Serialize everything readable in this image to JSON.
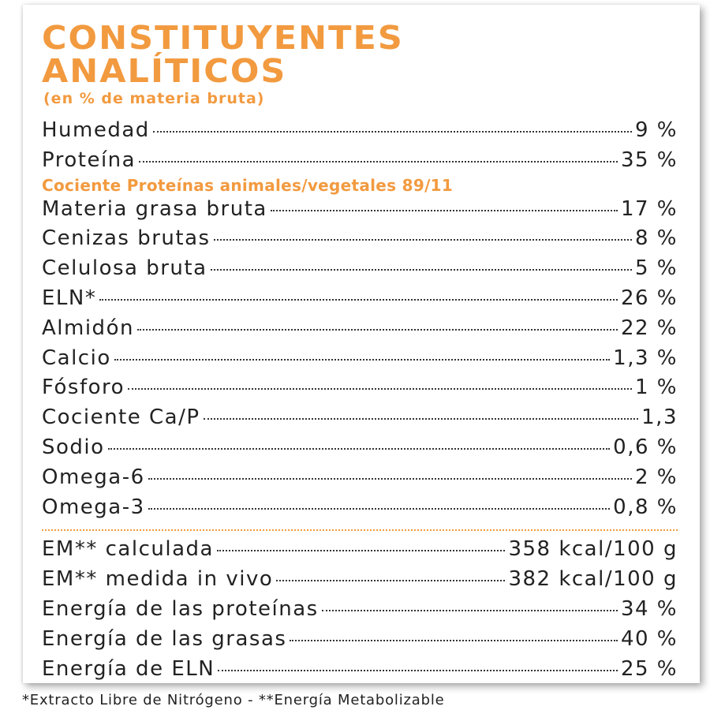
{
  "title_line1": "CONSTITUYENTES",
  "title_line2": "ANALÍTICOS",
  "subtitle": "(en % de materia bruta)",
  "rows_a": [
    {
      "label": "Humedad",
      "value": "9 %"
    },
    {
      "label": "Proteína",
      "value": "35 %"
    }
  ],
  "ratio_note": "Cociente Proteínas animales/vegetales 89/11",
  "rows_b": [
    {
      "label": "Materia grasa bruta",
      "value": "17 %"
    },
    {
      "label": "Cenizas brutas",
      "value": "8 %"
    },
    {
      "label": "Celulosa bruta",
      "value": "5 %"
    },
    {
      "label": "ELN*",
      "value": "26 %"
    },
    {
      "label": "Almidón",
      "value": "22 %"
    },
    {
      "label": "Calcio",
      "value": "1,3 %"
    },
    {
      "label": "Fósforo",
      "value": "1 %"
    },
    {
      "label": "Cociente Ca/P",
      "value": "1,3"
    },
    {
      "label": "Sodio",
      "value": "0,6 %"
    },
    {
      "label": "Omega-6",
      "value": "2 %"
    },
    {
      "label": "Omega-3",
      "value": "0,8 %"
    }
  ],
  "rows_c": [
    {
      "label": "EM** calculada",
      "value": "358 kcal/100 g"
    },
    {
      "label": "EM** medida in vivo",
      "value": "382 kcal/100 g"
    },
    {
      "label": "Energía de las proteínas",
      "value": "34 %"
    },
    {
      "label": "Energía de las grasas",
      "value": "40 %"
    },
    {
      "label": "Energía de ELN",
      "value": "25 %"
    }
  ],
  "footnote": "*Extracto Libre de Nitrógeno - **Energía Metabolizable",
  "colors": {
    "accent": "#f29a3f",
    "text": "#222222"
  }
}
